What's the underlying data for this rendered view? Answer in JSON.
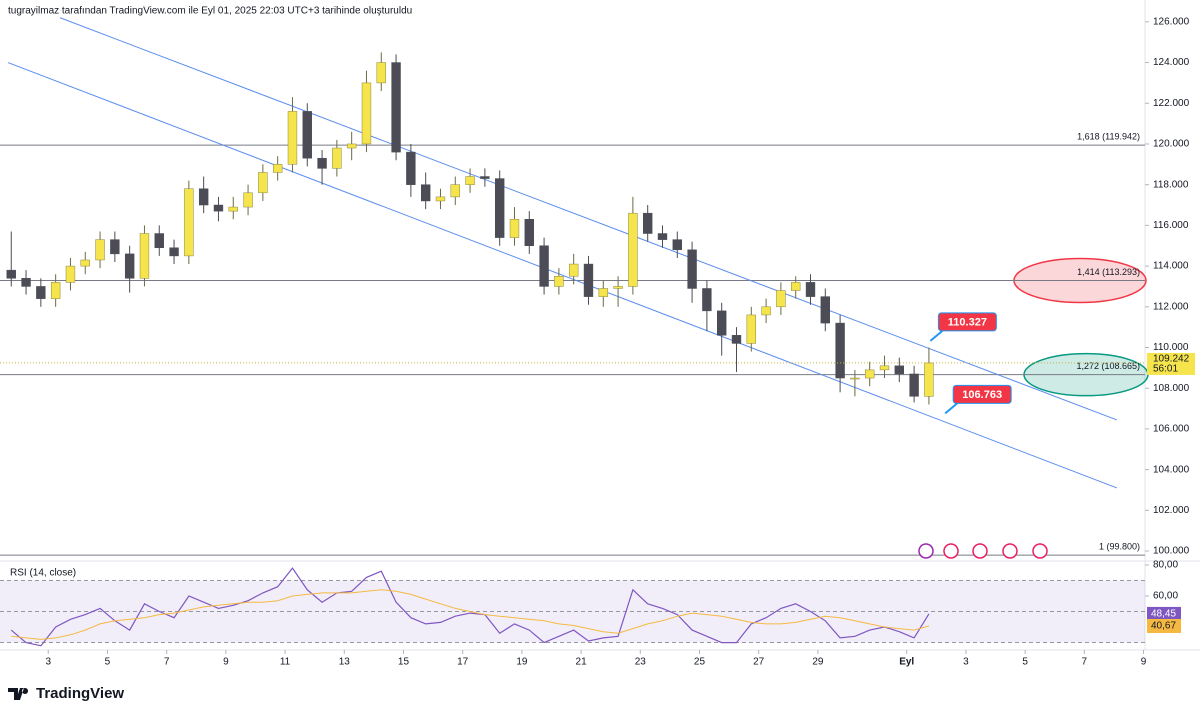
{
  "chart_data": {
    "type": "candlestick",
    "header": "tugrayilmaz tarafından TradingView.com ile Eyl 01, 2025 22:03 UTC+3 tarihinde oluşturuldu",
    "brand": "TradingView",
    "x": [
      1.75,
      2.25,
      2.75,
      3.25,
      3.75,
      4.25,
      4.75,
      5.25,
      5.75,
      6.25,
      6.75,
      7.25,
      7.75,
      8.25,
      8.75,
      9.25,
      9.75,
      10.25,
      10.75,
      11.25,
      11.75,
      12.25,
      12.75,
      13.25,
      13.75,
      14.25,
      14.75,
      15.25,
      15.75,
      16.25,
      16.75,
      17.25,
      17.75,
      18.25,
      18.75,
      19.25,
      19.75,
      20.25,
      20.75,
      21.25,
      21.75,
      22.25,
      22.75,
      23.25,
      23.75,
      24.25,
      24.75,
      25.25,
      25.75,
      26.25,
      26.75,
      27.25,
      27.75,
      28.25,
      28.75,
      29.25,
      29.75,
      30.25,
      30.75,
      31.25,
      31.75,
      32.25,
      32.75
    ],
    "open": [
      113.8,
      113.4,
      113.0,
      112.4,
      113.2,
      114.0,
      114.3,
      115.3,
      114.6,
      113.4,
      115.6,
      114.9,
      114.5,
      117.8,
      117.0,
      116.7,
      116.9,
      117.6,
      118.6,
      119.0,
      121.6,
      119.3,
      118.8,
      119.8,
      120.0,
      123.0,
      124.0,
      119.6,
      118.0,
      117.2,
      117.4,
      118.0,
      118.4,
      118.3,
      115.4,
      116.3,
      115.0,
      113.0,
      113.5,
      114.1,
      112.5,
      112.9,
      113.0,
      116.6,
      115.6,
      115.3,
      114.8,
      112.9,
      111.8,
      110.6,
      110.2,
      111.6,
      112.0,
      112.8,
      113.2,
      112.5,
      111.2,
      108.5,
      108.5,
      108.9,
      109.1,
      108.7,
      107.6
    ],
    "high": [
      115.7,
      113.8,
      113.4,
      113.6,
      114.4,
      114.7,
      115.7,
      115.7,
      115.0,
      116.0,
      116.0,
      115.3,
      118.2,
      118.4,
      117.4,
      117.4,
      118.0,
      119.0,
      119.4,
      122.3,
      122.0,
      119.7,
      120.2,
      120.6,
      123.6,
      124.5,
      124.4,
      120.0,
      118.6,
      117.8,
      118.4,
      118.8,
      118.8,
      118.7,
      116.9,
      116.7,
      115.4,
      113.9,
      114.6,
      114.5,
      113.3,
      113.5,
      117.4,
      117.0,
      116.0,
      115.7,
      115.2,
      113.3,
      112.2,
      111.0,
      112.0,
      112.4,
      113.2,
      113.5,
      113.6,
      112.9,
      111.6,
      108.9,
      109.3,
      109.6,
      109.5,
      109.1,
      110.0
    ],
    "low": [
      113.0,
      112.6,
      112.0,
      112.0,
      112.8,
      113.6,
      113.9,
      114.2,
      112.7,
      113.0,
      114.5,
      114.1,
      114.1,
      116.6,
      116.2,
      116.3,
      116.5,
      117.2,
      118.2,
      118.6,
      118.9,
      118.0,
      118.4,
      119.2,
      119.6,
      122.6,
      119.2,
      117.4,
      116.8,
      116.8,
      117.0,
      117.6,
      117.9,
      115.0,
      115.0,
      114.6,
      112.6,
      112.6,
      113.1,
      112.1,
      112.0,
      112.0,
      112.6,
      115.2,
      114.9,
      114.4,
      112.2,
      110.8,
      109.6,
      108.8,
      109.8,
      111.2,
      111.6,
      112.4,
      112.1,
      110.8,
      107.8,
      107.6,
      108.1,
      108.5,
      108.3,
      107.3,
      107.2
    ],
    "close": [
      113.4,
      113.0,
      112.4,
      113.2,
      114.0,
      114.3,
      115.3,
      114.6,
      113.4,
      115.6,
      114.9,
      114.5,
      117.8,
      117.0,
      116.7,
      116.9,
      117.6,
      118.6,
      119.0,
      121.6,
      119.3,
      118.8,
      119.8,
      120.0,
      123.0,
      124.0,
      119.6,
      118.0,
      117.2,
      117.4,
      118.0,
      118.4,
      118.3,
      115.4,
      116.3,
      115.0,
      113.0,
      113.5,
      114.1,
      112.5,
      112.9,
      113.0,
      116.6,
      115.6,
      115.3,
      114.8,
      112.9,
      111.8,
      110.6,
      110.2,
      111.6,
      112.0,
      112.8,
      113.2,
      112.5,
      111.2,
      108.5,
      108.5,
      108.9,
      109.1,
      108.7,
      107.6,
      109.24
    ],
    "up_color": "#f5e44c",
    "down_color": "#4b4c55",
    "last_price": {
      "value": 109.242,
      "label": "109.242"
    },
    "countdown": "56:01",
    "xlim": [
      1.37,
      40.05
    ],
    "xticks": [
      3,
      5,
      7,
      9,
      11,
      13,
      15,
      17,
      19,
      21,
      23,
      25,
      27,
      29,
      {
        "value": 32,
        "label": "Eyl"
      },
      {
        "value": 34,
        "label": "3"
      },
      {
        "value": 36,
        "label": "5"
      },
      {
        "value": 38,
        "label": "7"
      },
      {
        "value": 40,
        "label": "9"
      }
    ],
    "ylim": [
      99.56,
      126.68
    ],
    "yticks": [
      {
        "value": 100,
        "label": "100.000"
      },
      {
        "value": 102,
        "label": "102.000"
      },
      {
        "value": 104,
        "label": "104.000"
      },
      {
        "value": 106,
        "label": "106.000"
      },
      {
        "value": 108,
        "label": "108.000"
      },
      {
        "value": 110,
        "label": "110.000"
      },
      {
        "value": 112,
        "label": "112.000"
      },
      {
        "value": 114,
        "label": "114.000"
      },
      {
        "value": 116,
        "label": "116.000"
      },
      {
        "value": 118,
        "label": "118.000"
      },
      {
        "value": 120,
        "label": "120.000"
      },
      {
        "value": 122,
        "label": "122.000"
      },
      {
        "value": 124,
        "label": "124.000"
      },
      {
        "value": 126,
        "label": "126.000"
      }
    ],
    "levels": [
      {
        "value": 119.942,
        "label": "1,618 (119.942)"
      },
      {
        "value": 113.293,
        "label": "1,414 (113.293)"
      },
      {
        "value": 108.665,
        "label": "1,272 (108.665)"
      },
      {
        "value": 99.8,
        "label": "1 (99.800)"
      }
    ],
    "channel": [
      {
        "x": [
          3.4,
          39.1
        ],
        "y": [
          126.2,
          106.44
        ]
      },
      {
        "x": [
          1.64,
          39.1
        ],
        "y": [
          124.0,
          103.1
        ]
      }
    ],
    "callouts": [
      {
        "x": 32.8,
        "value": 110.327
      },
      {
        "x": 33.3,
        "value": 106.763
      }
    ],
    "rsi": {
      "title": "RSI (14, close)",
      "ylim": [
        25.2,
        83.2
      ],
      "yticks": [
        {
          "value": 80,
          "label": "80,00"
        },
        {
          "value": 60,
          "label": "60,00"
        }
      ],
      "levels": [
        30,
        50,
        70
      ],
      "series": [
        {
          "color": "#7e57c2",
          "last_value_label": "48,45",
          "values": [
            38,
            30,
            28,
            40,
            45,
            48,
            52,
            44,
            38,
            55,
            50,
            46,
            60,
            56,
            52,
            54,
            57,
            62,
            66,
            78,
            64,
            56,
            62,
            63,
            72,
            76,
            56,
            46,
            42,
            43,
            47,
            49,
            48,
            36,
            42,
            38,
            30,
            34,
            38,
            31,
            33,
            34,
            64,
            55,
            52,
            48,
            38,
            34,
            30,
            30,
            42,
            46,
            52,
            55,
            50,
            44,
            33,
            34,
            38,
            40,
            37,
            33,
            48.45
          ]
        },
        {
          "color": "#f5b942",
          "last_value_label": "40,67",
          "values": [
            34,
            33,
            32,
            33,
            35,
            38,
            42,
            44,
            45,
            46,
            48,
            49,
            51,
            53,
            54,
            55,
            56,
            56,
            57,
            60,
            61,
            62,
            62,
            62,
            63,
            64,
            63,
            61,
            58,
            55,
            52,
            50,
            48,
            47,
            46,
            45,
            44,
            42,
            41,
            39,
            37,
            36,
            39,
            42,
            44,
            47,
            49,
            48,
            47,
            45,
            43,
            42,
            42,
            43,
            45,
            47,
            46,
            44,
            42,
            40,
            39,
            38,
            40.67
          ]
        }
      ]
    }
  }
}
